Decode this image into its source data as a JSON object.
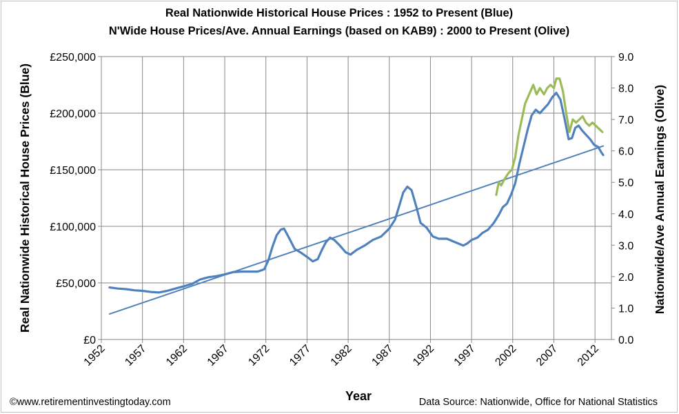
{
  "chart_data": {
    "type": "line",
    "title": "Real Nationwide Historical House Prices : 1952 to Present (Blue)",
    "subtitle": "N'Wide House Prices/Ave. Annual Earnings (based on KAB9) : 2000 to Present (Olive)",
    "xlabel": "Year",
    "ylabel_left": "Real Nationwide Historical House Prices (Blue)",
    "ylabel_right": "Nationwide/Ave Annual Earnings (Olive)",
    "xlim": [
      1952,
      2014
    ],
    "ylim_left": [
      0,
      250000
    ],
    "ylim_right": [
      0,
      9
    ],
    "x_ticks": [
      "1952",
      "1957",
      "1962",
      "1967",
      "1972",
      "1977",
      "1982",
      "1987",
      "1992",
      "1997",
      "2002",
      "2007",
      "2012"
    ],
    "y_ticks_left": [
      "£0",
      "£50,000",
      "£100,000",
      "£150,000",
      "£200,000",
      "£250,000"
    ],
    "y_ticks_right": [
      "0.0",
      "1.0",
      "2.0",
      "3.0",
      "4.0",
      "5.0",
      "6.0",
      "7.0",
      "8.0",
      "9.0"
    ],
    "grid": true,
    "series": [
      {
        "color": "#4f81bd",
        "axis": "left",
        "points": [
          [
            1953.0,
            46000
          ],
          [
            1954.0,
            45000
          ],
          [
            1955.0,
            44500
          ],
          [
            1956.0,
            43500
          ],
          [
            1957.0,
            43000
          ],
          [
            1958.0,
            42000
          ],
          [
            1959.0,
            41500
          ],
          [
            1960.0,
            43000
          ],
          [
            1961.0,
            45000
          ],
          [
            1962.0,
            47000
          ],
          [
            1963.0,
            49000
          ],
          [
            1964.0,
            53000
          ],
          [
            1965.0,
            55000
          ],
          [
            1966.0,
            56000
          ],
          [
            1967.0,
            57500
          ],
          [
            1968.0,
            59500
          ],
          [
            1969.0,
            60000
          ],
          [
            1970.0,
            60000
          ],
          [
            1971.0,
            60000
          ],
          [
            1971.8,
            62000
          ],
          [
            1972.3,
            70000
          ],
          [
            1972.8,
            82000
          ],
          [
            1973.3,
            92000
          ],
          [
            1973.8,
            97000
          ],
          [
            1974.2,
            98000
          ],
          [
            1974.8,
            90000
          ],
          [
            1975.5,
            80000
          ],
          [
            1976.2,
            77000
          ],
          [
            1977.0,
            73000
          ],
          [
            1977.7,
            69000
          ],
          [
            1978.3,
            71000
          ],
          [
            1978.8,
            79000
          ],
          [
            1979.3,
            86000
          ],
          [
            1979.8,
            90000
          ],
          [
            1980.3,
            88000
          ],
          [
            1981.0,
            83000
          ],
          [
            1981.7,
            77000
          ],
          [
            1982.3,
            75000
          ],
          [
            1983.0,
            79000
          ],
          [
            1984.0,
            83000
          ],
          [
            1985.0,
            88000
          ],
          [
            1986.0,
            91000
          ],
          [
            1987.0,
            98000
          ],
          [
            1987.7,
            106000
          ],
          [
            1988.2,
            118000
          ],
          [
            1988.7,
            130000
          ],
          [
            1989.2,
            135000
          ],
          [
            1989.7,
            132000
          ],
          [
            1990.3,
            117000
          ],
          [
            1990.8,
            103000
          ],
          [
            1991.5,
            99000
          ],
          [
            1992.3,
            91000
          ],
          [
            1993.0,
            89000
          ],
          [
            1994.0,
            89000
          ],
          [
            1995.0,
            86000
          ],
          [
            1996.0,
            83000
          ],
          [
            1996.5,
            85000
          ],
          [
            1997.0,
            88000
          ],
          [
            1997.7,
            90000
          ],
          [
            1998.3,
            94000
          ],
          [
            1999.0,
            97000
          ],
          [
            1999.7,
            103000
          ],
          [
            2000.3,
            110000
          ],
          [
            2000.8,
            117000
          ],
          [
            2001.3,
            120000
          ],
          [
            2001.8,
            128000
          ],
          [
            2002.3,
            138000
          ],
          [
            2002.8,
            155000
          ],
          [
            2003.3,
            170000
          ],
          [
            2003.8,
            185000
          ],
          [
            2004.3,
            198000
          ],
          [
            2004.8,
            203000
          ],
          [
            2005.3,
            200000
          ],
          [
            2005.8,
            204000
          ],
          [
            2006.3,
            208000
          ],
          [
            2006.8,
            214000
          ],
          [
            2007.3,
            218000
          ],
          [
            2007.8,
            212000
          ],
          [
            2008.3,
            195000
          ],
          [
            2008.8,
            177000
          ],
          [
            2009.2,
            178000
          ],
          [
            2009.6,
            187000
          ],
          [
            2010.0,
            189000
          ],
          [
            2010.4,
            185000
          ],
          [
            2010.9,
            181000
          ],
          [
            2011.4,
            177000
          ],
          [
            2011.9,
            172000
          ],
          [
            2012.4,
            170000
          ],
          [
            2012.8,
            165000
          ],
          [
            2013.0,
            163000
          ]
        ]
      },
      {
        "color": "#4f81bd",
        "axis": "left",
        "points": [
          [
            1953.0,
            22500
          ],
          [
            2013.0,
            171000
          ]
        ]
      },
      {
        "color": "#9bbb59",
        "axis": "right",
        "points": [
          [
            2000.0,
            4.6
          ],
          [
            2000.3,
            5.0
          ],
          [
            2000.6,
            4.9
          ],
          [
            2001.0,
            5.1
          ],
          [
            2001.5,
            5.3
          ],
          [
            2001.9,
            5.4
          ],
          [
            2002.3,
            5.8
          ],
          [
            2002.7,
            6.5
          ],
          [
            2003.1,
            7.0
          ],
          [
            2003.5,
            7.5
          ],
          [
            2004.0,
            7.8
          ],
          [
            2004.5,
            8.1
          ],
          [
            2004.9,
            7.8
          ],
          [
            2005.3,
            8.0
          ],
          [
            2005.8,
            7.8
          ],
          [
            2006.2,
            8.0
          ],
          [
            2006.6,
            8.1
          ],
          [
            2007.0,
            8.0
          ],
          [
            2007.3,
            8.3
          ],
          [
            2007.7,
            8.3
          ],
          [
            2008.1,
            7.9
          ],
          [
            2008.5,
            7.2
          ],
          [
            2008.9,
            6.6
          ],
          [
            2009.3,
            7.0
          ],
          [
            2009.7,
            6.9
          ],
          [
            2010.1,
            7.0
          ],
          [
            2010.5,
            7.1
          ],
          [
            2010.9,
            6.9
          ],
          [
            2011.3,
            6.8
          ],
          [
            2011.7,
            6.9
          ],
          [
            2012.1,
            6.8
          ],
          [
            2012.5,
            6.7
          ],
          [
            2012.9,
            6.6
          ]
        ]
      }
    ]
  },
  "footer": {
    "copyright": "©www.retirementinvestingtoday.com",
    "source": "Data Source: Nationwide, Office for National Statistics"
  }
}
